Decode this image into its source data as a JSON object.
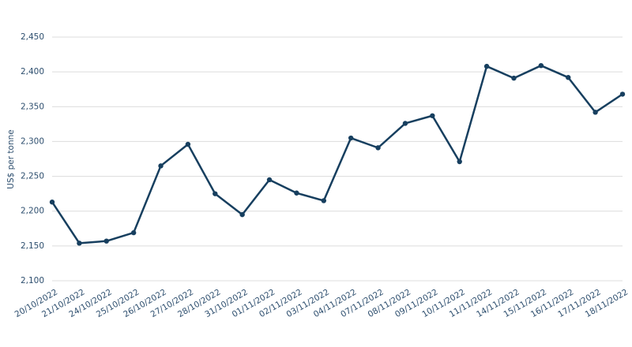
{
  "chart_data": {
    "type": "line",
    "y_label": "US$ per tonne",
    "categories": [
      "20/10/2022",
      "21/10/2022",
      "24/10/2022",
      "25/10/2022",
      "26/10/2022",
      "27/10/2022",
      "28/10/2022",
      "31/10/2022",
      "01/11/2022",
      "02/11/2022",
      "03/11/2022",
      "04/11/2022",
      "07/11/2022",
      "08/11/2022",
      "09/11/2022",
      "10/11/2022",
      "11/11/2022",
      "14/11/2022",
      "15/11/2022",
      "16/11/2022",
      "17/11/2022",
      "18/11/2022"
    ],
    "values": [
      2213,
      2154,
      2157,
      2169,
      2265,
      2296,
      2225,
      2195,
      2245,
      2226,
      2215,
      2305,
      2291,
      2326,
      2337,
      2271,
      2408,
      2391,
      2409,
      2392,
      2342,
      2368
    ],
    "color": "#173f5f",
    "ylim": [
      2100,
      2450
    ],
    "yticks": [
      {
        "value": 2100,
        "label": "2,100"
      },
      {
        "value": 2150,
        "label": "2,150"
      },
      {
        "value": 2200,
        "label": "2,200"
      },
      {
        "value": 2250,
        "label": "2,250"
      },
      {
        "value": 2300,
        "label": "2,300"
      },
      {
        "value": 2350,
        "label": "2,350"
      },
      {
        "value": 2400,
        "label": "2,400"
      },
      {
        "value": 2450,
        "label": "2,450"
      }
    ],
    "grid": true
  }
}
